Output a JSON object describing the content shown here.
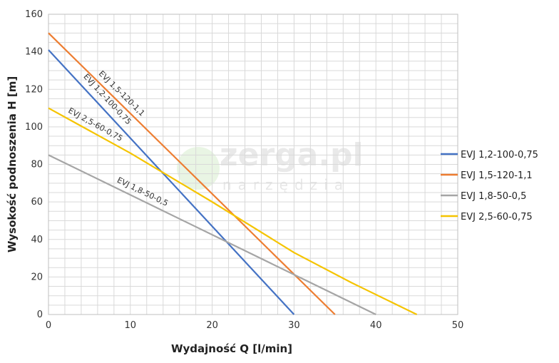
{
  "chart_data": {
    "type": "line",
    "xlabel": "Wydajność Q [l/min]",
    "ylabel": "Wysokość podnoszenia H [m]",
    "xlim": [
      0,
      50
    ],
    "ylim": [
      0,
      160
    ],
    "x_ticks": [
      0,
      10,
      20,
      30,
      40,
      50
    ],
    "y_ticks": [
      0,
      20,
      40,
      60,
      80,
      100,
      120,
      140,
      160
    ],
    "grid": true,
    "legend_position": "right",
    "series": [
      {
        "name": "EVJ 1,2-100-0,75",
        "color": "#4472c4",
        "x": [
          0,
          30
        ],
        "y": [
          141,
          0
        ]
      },
      {
        "name": "EVJ 1,5-120-1,1",
        "color": "#ed7d31",
        "x": [
          0,
          35
        ],
        "y": [
          150,
          0
        ]
      },
      {
        "name": "EVJ 1,8-50-0,5",
        "color": "#a5a5a5",
        "x": [
          0,
          40
        ],
        "y": [
          85,
          0
        ]
      },
      {
        "name": "EVJ 2,5-60-0,75",
        "color": "#f5c400",
        "x": [
          0,
          10,
          20,
          30,
          37,
          45
        ],
        "y": [
          110,
          86,
          60,
          33,
          17,
          0
        ]
      }
    ],
    "line_labels": [
      {
        "text": "EVJ 1,5-120-1,1",
        "series": 1
      },
      {
        "text": "EVJ 1,2-100-0,75",
        "series": 0
      },
      {
        "text": "EVJ 2,5-60-0,75",
        "series": 3
      },
      {
        "text": "EVJ 1,8-50-0,5",
        "series": 2
      }
    ]
  },
  "watermark": {
    "main": "zerga.pl",
    "sub": "narzędzia"
  }
}
